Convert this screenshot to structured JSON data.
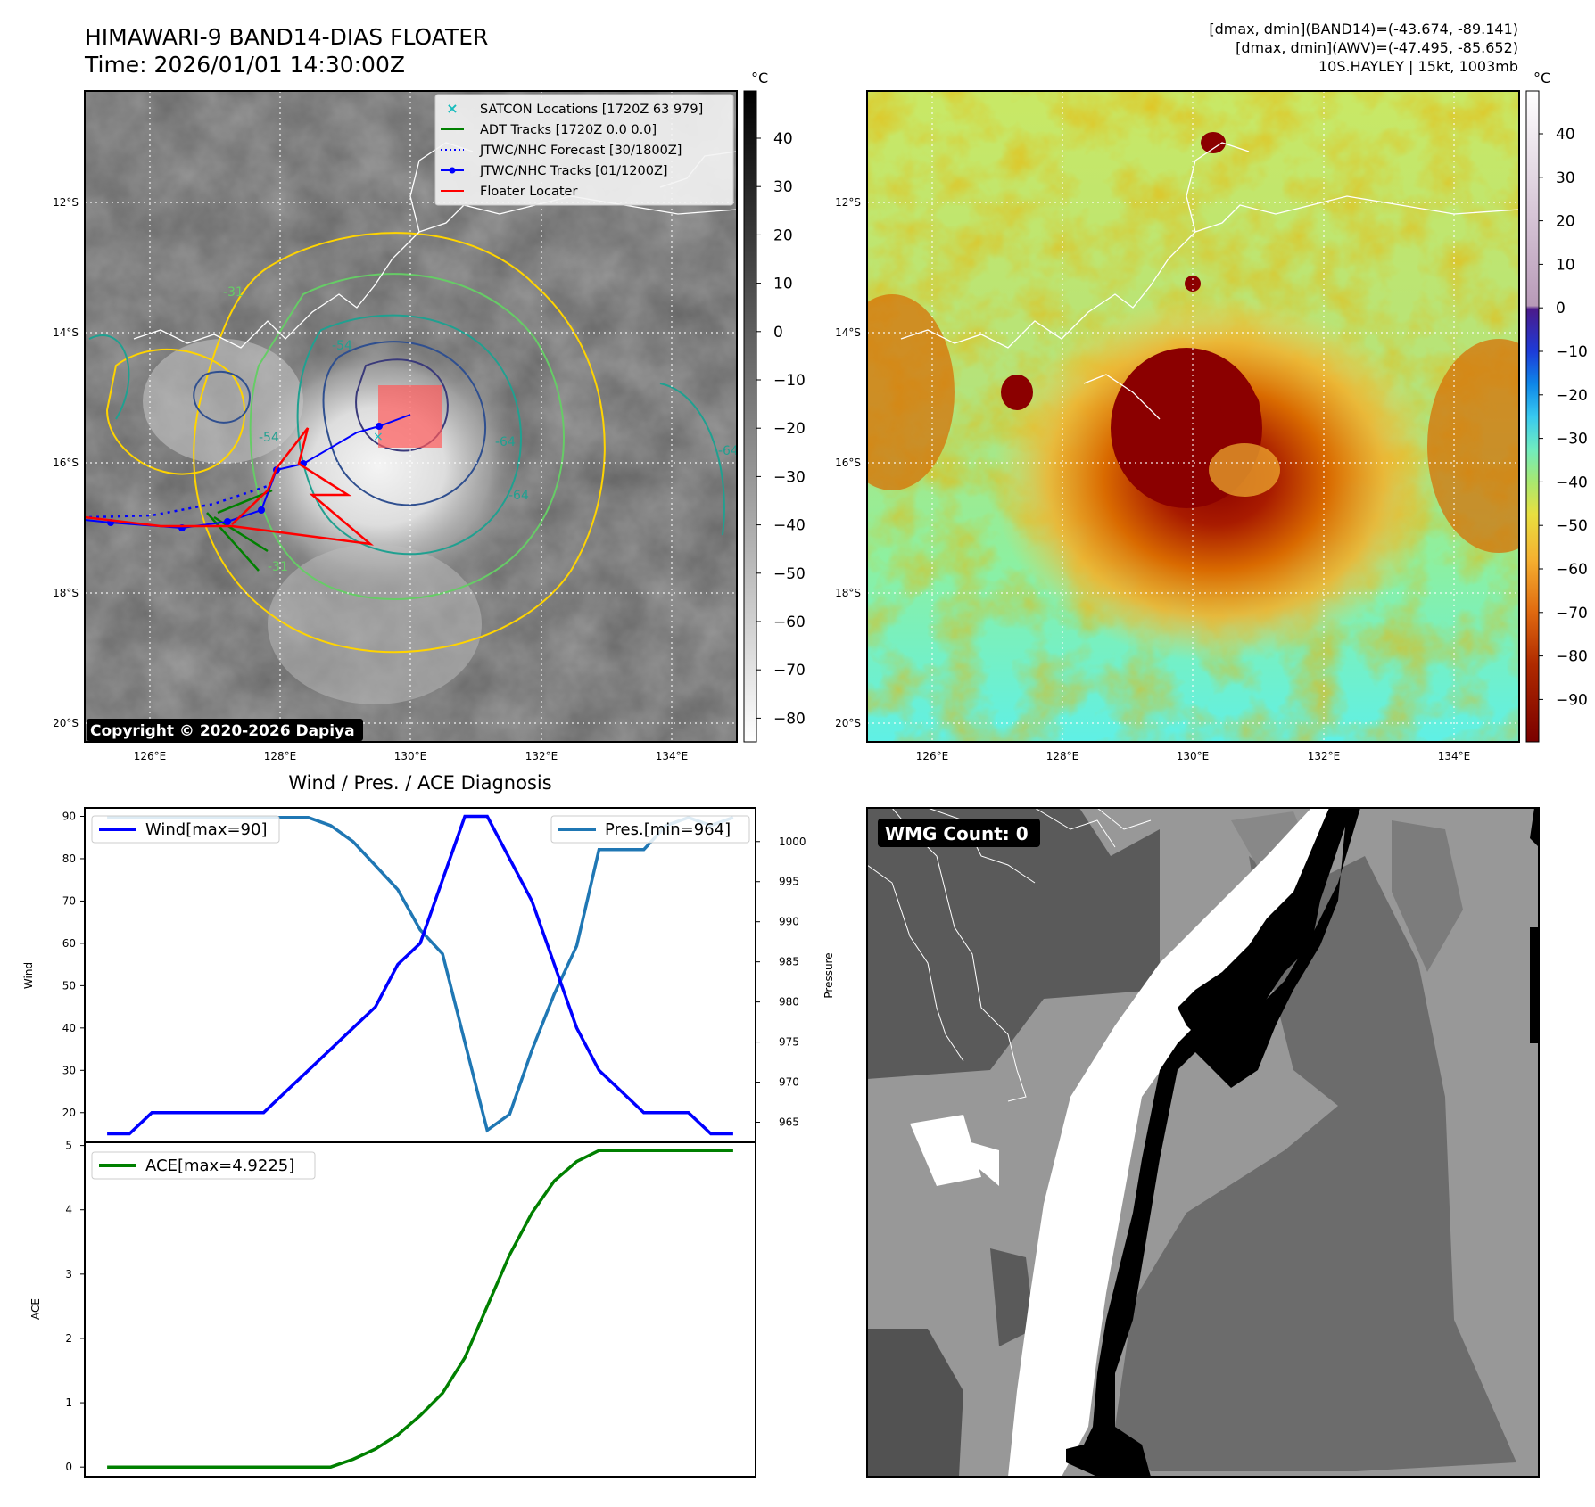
{
  "header": {
    "title_line1": "HIMAWARI-9 BAND14-DIAS FLOATER",
    "title_line2": "Time: 2026/01/01 14:30:00Z",
    "right_line1": "[dmax, dmin](BAND14)=(-43.674, -89.141)",
    "right_line2": "[dmax, dmin](AWV)=(-47.495, -85.652)",
    "right_line3": "10S.HAYLEY | 15kt, 1003mb"
  },
  "map_axes": {
    "lon_labels": [
      "126°E",
      "128°E",
      "130°E",
      "132°E",
      "134°E"
    ],
    "lat_labels": [
      "12°S",
      "14°S",
      "16°S",
      "18°S",
      "20°S"
    ]
  },
  "ir_panel": {
    "copyright": "Copyright © 2020-2026 Dapiya",
    "colorbar_unit": "°C",
    "colorbar_ticks": [
      "40",
      "30",
      "20",
      "10",
      "0",
      "−10",
      "−20",
      "−30",
      "−40",
      "−50",
      "−60",
      "−70",
      "−80"
    ],
    "legend": [
      {
        "label": "SATCON Locations [1720Z 63 979]",
        "color": "#17bcbc",
        "style": "x"
      },
      {
        "label": "ADT Tracks [1720Z 0.0 0.0]",
        "color": "#008000",
        "style": "line"
      },
      {
        "label": "JTWC/NHC Forecast [30/1800Z]",
        "color": "#0000ff",
        "style": "dotted"
      },
      {
        "label": "JTWC/NHC Tracks [01/1200Z]",
        "color": "#0000ff",
        "style": "line-marker"
      },
      {
        "label": "Floater Locater",
        "color": "#ff0000",
        "style": "line"
      }
    ],
    "contour_labels": [
      "-31",
      "-54",
      "-64",
      "-64",
      "-54",
      "-31",
      "-64"
    ]
  },
  "wv_panel": {
    "colorbar_unit": "°C",
    "colorbar_ticks": [
      "40",
      "30",
      "20",
      "10",
      "0",
      "−10",
      "−20",
      "−30",
      "−40",
      "−50",
      "−60",
      "−70",
      "−80",
      "−90"
    ]
  },
  "wmg_panel": {
    "label": "WMG Count: 0"
  },
  "chart_data": [
    {
      "type": "line",
      "title": "Wind / Pres. / ACE Diagnosis",
      "ylabel": "Wind",
      "y2label": "Pressure",
      "ylim": [
        13,
        92
      ],
      "y2lim": [
        962.5,
        1004.2
      ],
      "yticks": [
        20,
        30,
        40,
        50,
        60,
        70,
        80,
        90
      ],
      "y2ticks": [
        965,
        970,
        975,
        980,
        985,
        990,
        995,
        1000
      ],
      "x": [
        0,
        1,
        2,
        3,
        4,
        5,
        6,
        7,
        8,
        9,
        10,
        11,
        12,
        13,
        14,
        15,
        16,
        17,
        18,
        19,
        20,
        21,
        22,
        23,
        24,
        25,
        26,
        27,
        28
      ],
      "series": [
        {
          "name": "Wind[max=90]",
          "axis": "left",
          "color": "#0000ff",
          "values": [
            15,
            15,
            20,
            20,
            20,
            20,
            20,
            20,
            25,
            30,
            35,
            40,
            45,
            55,
            60,
            75,
            90,
            90,
            80,
            70,
            55,
            40,
            30,
            25,
            20,
            20,
            20,
            15,
            15
          ]
        },
        {
          "name": "Pres.[min=964]",
          "axis": "right",
          "color": "#1f77b4",
          "values": [
            1003,
            1003,
            1003,
            1003,
            1003,
            1003,
            1003,
            1003,
            1003,
            1003,
            1002,
            1000,
            997,
            994,
            989,
            986,
            975,
            964,
            966,
            974,
            981,
            987,
            999,
            999,
            999,
            1002,
            1003,
            1002,
            1003
          ]
        }
      ]
    },
    {
      "type": "line",
      "ylabel": "ACE",
      "ylim": [
        -0.15,
        5.05
      ],
      "yticks": [
        0,
        1,
        2,
        3,
        4,
        5
      ],
      "x": [
        0,
        1,
        2,
        3,
        4,
        5,
        6,
        7,
        8,
        9,
        10,
        11,
        12,
        13,
        14,
        15,
        16,
        17,
        18,
        19,
        20,
        21,
        22,
        23,
        24,
        25,
        26,
        27,
        28
      ],
      "series": [
        {
          "name": "ACE[max=4.9225]",
          "color": "#008000",
          "values": [
            0,
            0,
            0,
            0,
            0,
            0,
            0,
            0,
            0,
            0,
            0,
            0.12,
            0.28,
            0.5,
            0.8,
            1.15,
            1.7,
            2.5,
            3.3,
            3.95,
            4.45,
            4.75,
            4.9225,
            4.9225,
            4.9225,
            4.9225,
            4.9225,
            4.9225,
            4.9225
          ]
        }
      ]
    }
  ]
}
